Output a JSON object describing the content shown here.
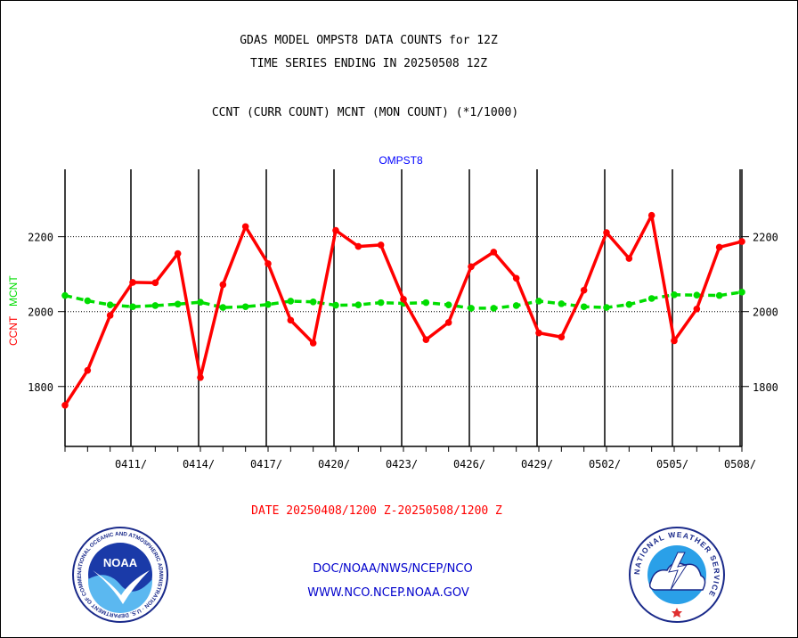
{
  "header": {
    "title_line1": "GDAS MODEL OMPST8 DATA COUNTS for 12Z",
    "title_line2": "TIME SERIES ENDING IN 20250508 12Z",
    "subtitle": "CCNT (CURR COUNT) MCNT (MON COUNT) (*1/1000)"
  },
  "date_range": "DATE 20250408/1200 Z-20250508/1200 Z",
  "footer": {
    "org_text": "DOC/NOAA/NWS/NCEP/NCO",
    "url_text": "WWW.NCO.NCEP.NOAA.GOV"
  },
  "logos": {
    "noaa_inner": "NOAA",
    "noaa_ring": "NATIONAL OCEANIC AND ATMOSPHERIC ADMINISTRATION · U.S. DEPARTMENT OF COMMERCE ·",
    "nws_ring": "NATIONAL WEATHER SERVICE"
  },
  "colors": {
    "ccnt": "#ff0000",
    "mcnt": "#00dd00",
    "plot_title": "#0000ff",
    "date_range": "#ff0000",
    "footer_link": "#0000cc"
  },
  "chart_data": {
    "type": "line",
    "title": "OMPST8",
    "ylabel_series": [
      "CCNT",
      "MCNT"
    ],
    "yticks": [
      1800,
      2000,
      2200
    ],
    "ylim": [
      1640,
      2380
    ],
    "xlim": [
      0,
      30
    ],
    "xtick_labels": [
      "0411/",
      "0414/",
      "0417/",
      "0420/",
      "0423/",
      "0426/",
      "0429/",
      "0502/",
      "0505/",
      "0508/"
    ],
    "xtick_positions": [
      3,
      6,
      9,
      12,
      15,
      18,
      21,
      24,
      27,
      30
    ],
    "grid_y": true,
    "series": [
      {
        "name": "CCNT",
        "x": [
          0,
          1,
          2,
          3,
          4,
          5,
          6,
          7,
          8,
          9,
          10,
          11,
          12,
          13,
          14,
          15,
          16,
          17,
          18,
          19,
          20,
          21,
          22,
          23,
          24,
          25,
          26,
          27,
          28,
          29,
          30
        ],
        "values": [
          1750,
          1843,
          1990,
          2078,
          2077,
          2155,
          1824,
          2072,
          2227,
          2128,
          1977,
          1916,
          2217,
          2174,
          2178,
          2033,
          1925,
          1971,
          2120,
          2159,
          2089,
          1943,
          1932,
          2057,
          2211,
          2142,
          2257,
          1922,
          2007,
          2172,
          2187
        ]
      },
      {
        "name": "MCNT",
        "x": [
          0,
          1,
          2,
          3,
          4,
          5,
          6,
          7,
          8,
          9,
          10,
          11,
          12,
          13,
          14,
          15,
          16,
          17,
          18,
          19,
          20,
          21,
          22,
          23,
          24,
          25,
          26,
          27,
          28,
          29,
          30
        ],
        "values": [
          2043,
          2029,
          2018,
          2013,
          2016,
          2020,
          2025,
          2011,
          2013,
          2019,
          2028,
          2026,
          2017,
          2018,
          2024,
          2022,
          2024,
          2018,
          2009,
          2009,
          2016,
          2028,
          2021,
          2013,
          2011,
          2019,
          2035,
          2045,
          2044,
          2043,
          2052
        ]
      }
    ]
  }
}
